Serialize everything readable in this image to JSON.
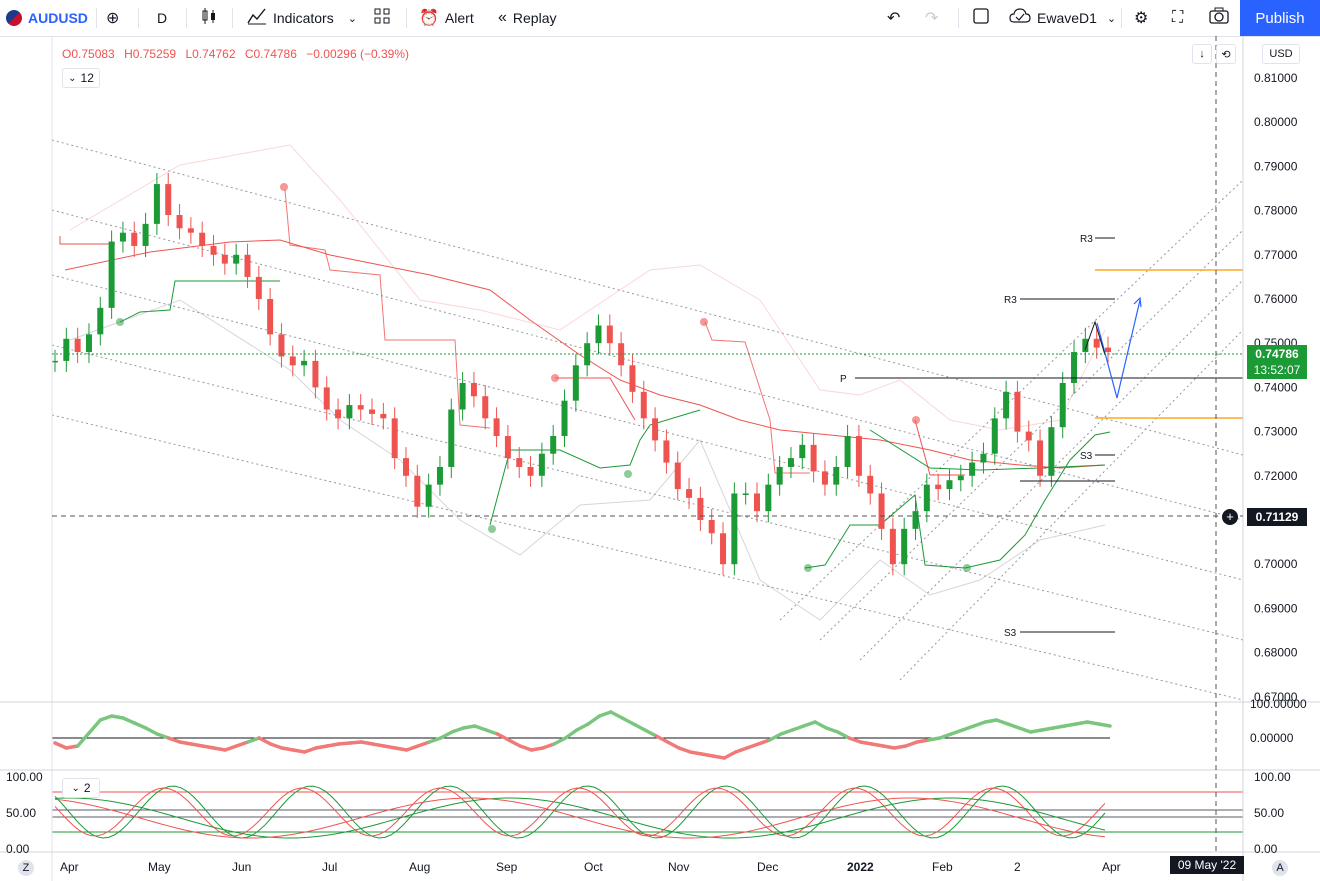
{
  "toolbar": {
    "symbol": "AUDUSD",
    "interval": "D",
    "indicators_label": "Indicators",
    "alert_label": "Alert",
    "replay_label": "Replay",
    "layout_name": "EwaveD1",
    "publish_label": "Publish"
  },
  "legend": {
    "open": "O0.75083",
    "high": "H0.75259",
    "low": "L0.74762",
    "close": "C0.74786",
    "change": "−0.00296 (−0.39%)",
    "indicator_count": "12",
    "osc_count": "2"
  },
  "price_axis": {
    "currency": "USD",
    "ticks": [
      "0.81000",
      "0.80000",
      "0.79000",
      "0.78000",
      "0.77000",
      "0.76000",
      "0.75000",
      "0.74000",
      "0.73000",
      "0.72000",
      "0.71000",
      "0.70000",
      "0.69000",
      "0.68000",
      "0.67000"
    ],
    "current_price": "0.74786",
    "countdown": "13:52:07",
    "crosshair_price": "0.71129",
    "osc1_ticks": [
      "100.00000",
      "0.00000"
    ],
    "osc2_ticks": [
      "100.00",
      "50.00",
      "0.00"
    ],
    "osc2_left_ticks": [
      "100.00",
      "50.00",
      "0.00"
    ]
  },
  "time_axis": {
    "labels": [
      "Apr",
      "May",
      "Jun",
      "Jul",
      "Aug",
      "Sep",
      "Oct",
      "Nov",
      "Dec",
      "2022",
      "Feb",
      "2",
      "Apr"
    ],
    "crosshair_date": "09 May '22",
    "left_btn": "Z",
    "right_btn": "A"
  },
  "pivots": {
    "r3_upper": "R3",
    "r3_lower": "R3",
    "p": "P",
    "s3_upper": "S3",
    "s3_lower": "S3"
  },
  "colors": {
    "bull": "#26a69a",
    "green": "#1b9a36",
    "red": "#ef5350",
    "accent": "#2962ff",
    "orange": "#ffa726"
  },
  "icons": [
    "plus-circle-icon",
    "candles-icon",
    "indicators-icon",
    "templates-icon",
    "alarm-clock-icon",
    "replay-icon",
    "undo-icon",
    "redo-icon",
    "square-icon",
    "cloud-icon",
    "gear-icon",
    "fullscreen-icon",
    "camera-icon"
  ]
}
